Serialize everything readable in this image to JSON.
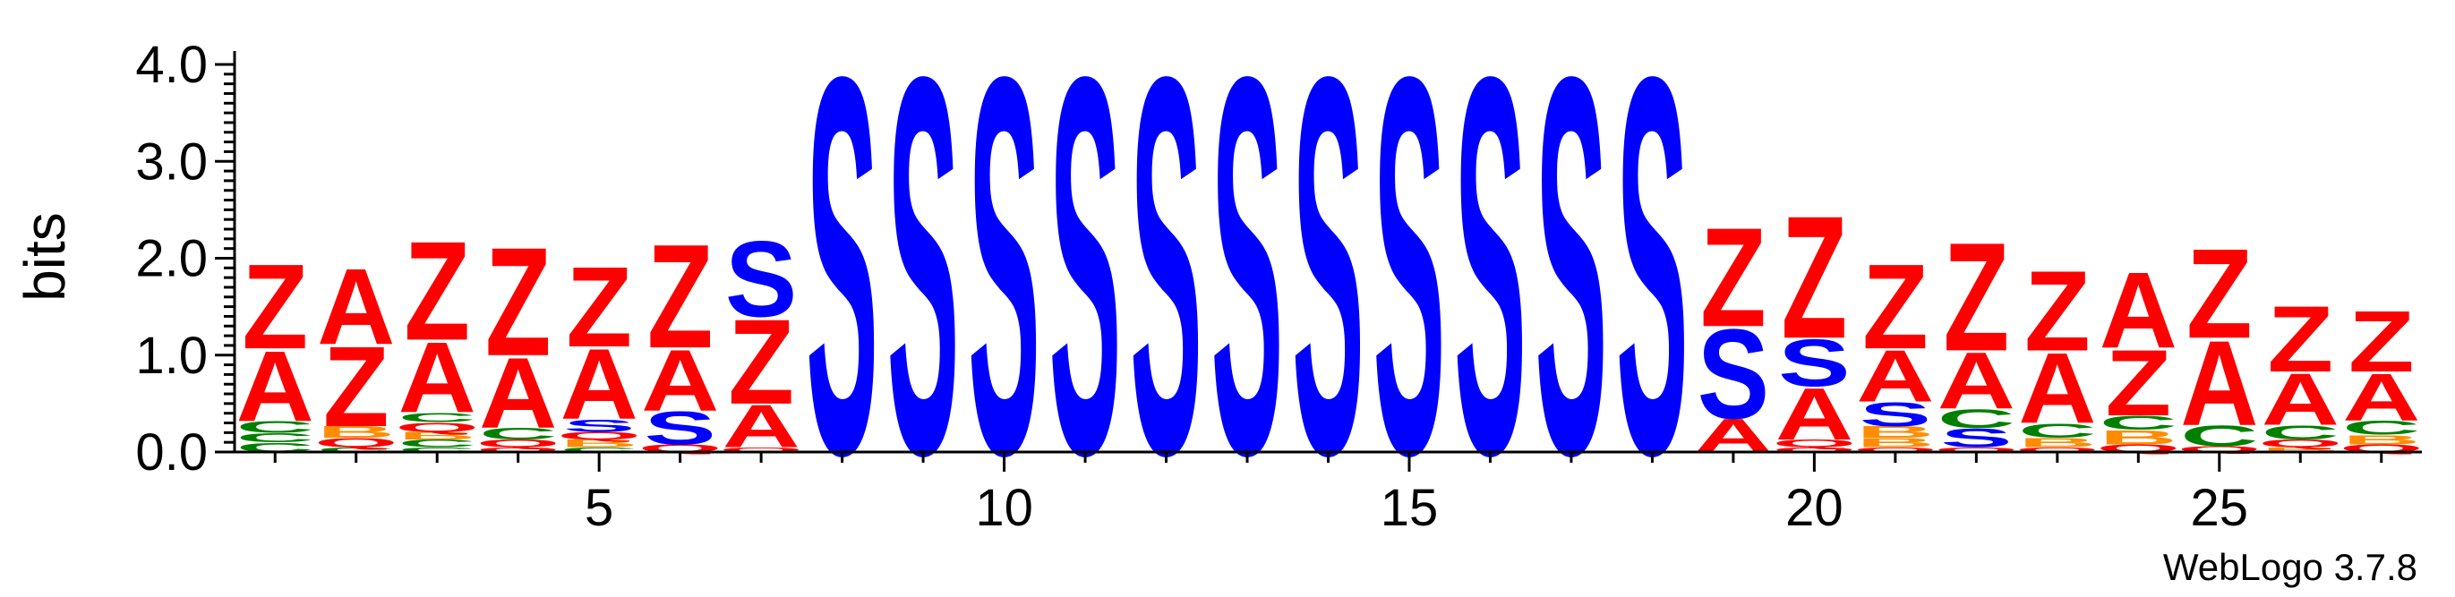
{
  "chart_data": {
    "type": "sequence-logo",
    "ylabel": "bits",
    "ylim": [
      0,
      4.0
    ],
    "y_ticks": [
      "0.0",
      "1.0",
      "2.0",
      "3.0",
      "4.0"
    ],
    "x_ticks": [
      5,
      10,
      15,
      20,
      25
    ],
    "x_range": [
      1,
      27
    ],
    "colors": {
      "Z": "#ff0000",
      "A": "#ff0000",
      "S": "#0000ff",
      "C": "#008000",
      "B": "#ff8c00",
      "Q": "#ff0000"
    },
    "positions": [
      {
        "pos": 1,
        "stack": [
          [
            "C",
            0.1
          ],
          [
            "C",
            0.1
          ],
          [
            "C",
            0.12
          ],
          [
            "A",
            0.75
          ],
          [
            "Z",
            0.9
          ]
        ]
      },
      {
        "pos": 2,
        "stack": [
          [
            "C",
            0.05
          ],
          [
            "Q",
            0.1
          ],
          [
            "B",
            0.12
          ],
          [
            "Z",
            0.85
          ],
          [
            "A",
            0.8
          ]
        ]
      },
      {
        "pos": 3,
        "stack": [
          [
            "C",
            0.05
          ],
          [
            "C",
            0.08
          ],
          [
            "B",
            0.08
          ],
          [
            "Q",
            0.1
          ],
          [
            "C",
            0.1
          ],
          [
            "A",
            0.75
          ],
          [
            "Z",
            1.05
          ]
        ]
      },
      {
        "pos": 4,
        "stack": [
          [
            "Q",
            0.05
          ],
          [
            "Q",
            0.08
          ],
          [
            "C",
            0.12
          ],
          [
            "A",
            0.75
          ],
          [
            "Z",
            1.15
          ]
        ]
      },
      {
        "pos": 5,
        "stack": [
          [
            "C",
            0.05
          ],
          [
            "B",
            0.08
          ],
          [
            "Q",
            0.08
          ],
          [
            "S",
            0.13
          ],
          [
            "A",
            0.75
          ],
          [
            "Z",
            0.85
          ]
        ]
      },
      {
        "pos": 6,
        "stack": [
          [
            "Q",
            0.08
          ],
          [
            "S",
            0.35
          ],
          [
            "A",
            0.65
          ],
          [
            "Z",
            1.1
          ]
        ]
      },
      {
        "pos": 7,
        "stack": [
          [
            "Q",
            0.05
          ],
          [
            "A",
            0.45
          ],
          [
            "Z",
            0.9
          ],
          [
            "S",
            0.8
          ]
        ]
      },
      {
        "pos": 8,
        "stack": [
          [
            "S",
            4.0
          ]
        ]
      },
      {
        "pos": 9,
        "stack": [
          [
            "S",
            4.0
          ]
        ]
      },
      {
        "pos": 10,
        "stack": [
          [
            "S",
            4.0
          ]
        ]
      },
      {
        "pos": 11,
        "stack": [
          [
            "S",
            4.0
          ]
        ]
      },
      {
        "pos": 12,
        "stack": [
          [
            "S",
            4.0
          ]
        ]
      },
      {
        "pos": 13,
        "stack": [
          [
            "S",
            4.0
          ]
        ]
      },
      {
        "pos": 14,
        "stack": [
          [
            "S",
            4.0
          ]
        ]
      },
      {
        "pos": 15,
        "stack": [
          [
            "S",
            4.0
          ]
        ]
      },
      {
        "pos": 16,
        "stack": [
          [
            "S",
            4.0
          ]
        ]
      },
      {
        "pos": 17,
        "stack": [
          [
            "S",
            4.0
          ]
        ]
      },
      {
        "pos": 18,
        "stack": [
          [
            "S",
            4.0
          ]
        ]
      },
      {
        "pos": 19,
        "stack": [
          [
            "A",
            0.35
          ],
          [
            "S",
            0.95
          ],
          [
            "Z",
            1.05
          ]
        ]
      },
      {
        "pos": 20,
        "stack": [
          [
            "Q",
            0.05
          ],
          [
            "Q",
            0.08
          ],
          [
            "A",
            0.55
          ],
          [
            "S",
            0.5
          ],
          [
            "Z",
            1.3
          ]
        ]
      },
      {
        "pos": 21,
        "stack": [
          [
            "Q",
            0.05
          ],
          [
            "B",
            0.1
          ],
          [
            "B",
            0.12
          ],
          [
            "S",
            0.25
          ],
          [
            "A",
            0.55
          ],
          [
            "Z",
            0.9
          ]
        ]
      },
      {
        "pos": 22,
        "stack": [
          [
            "Q",
            0.05
          ],
          [
            "S",
            0.2
          ],
          [
            "C",
            0.2
          ],
          [
            "A",
            0.6
          ],
          [
            "Z",
            1.15
          ]
        ]
      },
      {
        "pos": 23,
        "stack": [
          [
            "Q",
            0.05
          ],
          [
            "B",
            0.1
          ],
          [
            "C",
            0.15
          ],
          [
            "A",
            0.75
          ],
          [
            "Z",
            0.85
          ]
        ]
      },
      {
        "pos": 24,
        "stack": [
          [
            "Q",
            0.08
          ],
          [
            "B",
            0.15
          ],
          [
            "C",
            0.15
          ],
          [
            "Z",
            0.7
          ],
          [
            "A",
            0.8
          ]
        ]
      },
      {
        "pos": 25,
        "stack": [
          [
            "Q",
            0.06
          ],
          [
            "C",
            0.22
          ],
          [
            "A",
            0.9
          ],
          [
            "Z",
            0.95
          ]
        ]
      },
      {
        "pos": 26,
        "stack": [
          [
            "B",
            0.05
          ],
          [
            "Q",
            0.08
          ],
          [
            "C",
            0.15
          ],
          [
            "A",
            0.55
          ],
          [
            "Z",
            0.7
          ]
        ]
      },
      {
        "pos": 27,
        "stack": [
          [
            "Q",
            0.08
          ],
          [
            "B",
            0.1
          ],
          [
            "C",
            0.15
          ],
          [
            "A",
            0.5
          ],
          [
            "Z",
            0.65
          ]
        ]
      }
    ]
  },
  "watermark": "WebLogo 3.7.8"
}
